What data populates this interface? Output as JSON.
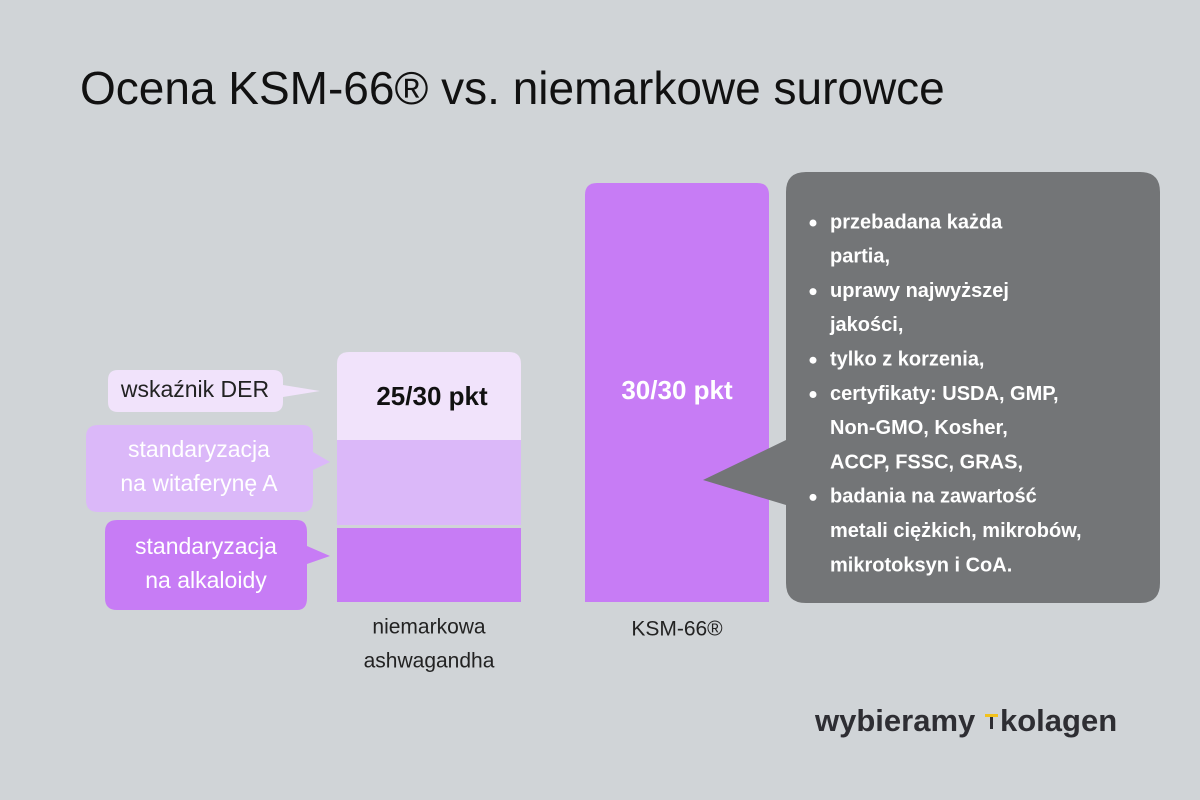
{
  "title": "Ocena KSM-66® vs. niemarkowe surowce",
  "left_bar": {
    "label": [
      "niemarkowa",
      "ashwagandha"
    ],
    "score": "25/30 pkt",
    "callouts": [
      [
        "wskaźnik DER"
      ],
      [
        "standaryzacja",
        "na witaferynę A"
      ],
      [
        "standaryzacja",
        "na alkaloidy"
      ]
    ]
  },
  "right_bar": {
    "label": "KSM-66®",
    "score": "30/30 pkt"
  },
  "features": [
    [
      "przebadana każda",
      "partia,"
    ],
    [
      "uprawy najwyższej",
      "jakości,"
    ],
    [
      "tylko z korzenia,"
    ],
    [
      "certyfikaty: USDA, GMP,",
      "Non-GMO, Kosher,",
      "ACCP, FSSC, GRAS,"
    ],
    [
      "badania na zawartość",
      "metali ciężkich, mikrobów,",
      "mikrotoksyn i CoA."
    ]
  ],
  "logo": {
    "left": "wybieramy",
    "right": "kolagen"
  }
}
